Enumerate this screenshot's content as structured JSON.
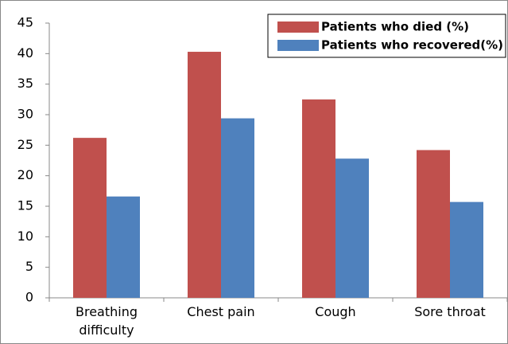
{
  "chart_data": {
    "type": "bar",
    "categories": [
      "Breathing difficulty",
      "Chest pain",
      "Cough",
      "Sore throat"
    ],
    "series": [
      {
        "name": "Patients who died (%)",
        "color": "#c0504d",
        "values": [
          26.2,
          40.3,
          32.5,
          24.2
        ]
      },
      {
        "name": "Patients who recovered(%)",
        "color": "#4f81bd",
        "values": [
          16.6,
          29.4,
          22.8,
          15.7
        ]
      }
    ],
    "ylim": [
      0,
      45
    ],
    "yticks": [
      0,
      5,
      10,
      15,
      20,
      25,
      30,
      35,
      40,
      45
    ],
    "grid": false,
    "legend": "upper-right"
  }
}
